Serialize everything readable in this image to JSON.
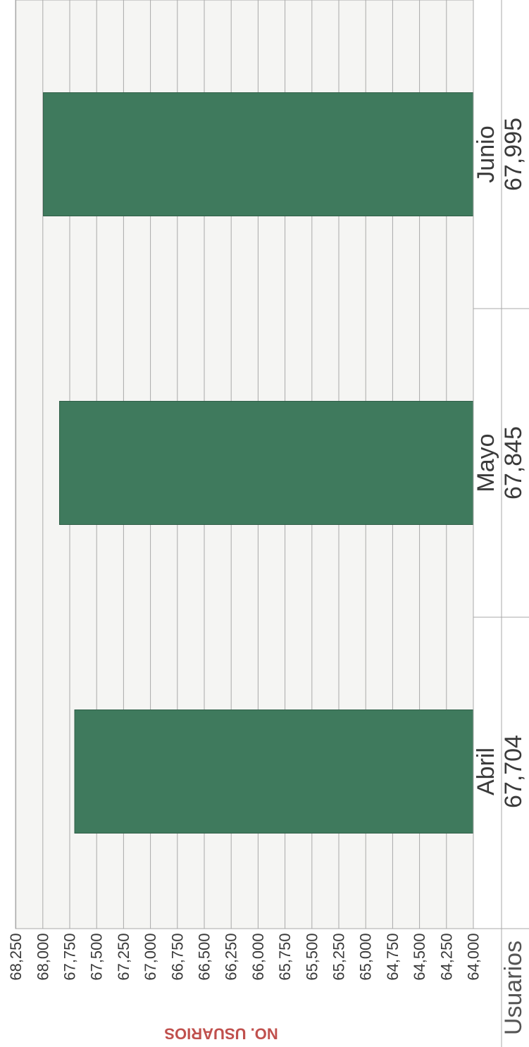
{
  "chart_data": {
    "type": "bar",
    "orientation": "rotated-90-clockwise",
    "categories": [
      "Abril",
      "Mayo",
      "Junio"
    ],
    "series": [
      {
        "name": "Usuarios",
        "values": [
          67704,
          67845,
          67995
        ]
      }
    ],
    "value_labels": [
      "67,704",
      "67,845",
      "67,995"
    ],
    "ylabel": "NO. USUARIOS",
    "ylim": [
      64000,
      68250
    ],
    "yticks": [
      64000,
      64250,
      64500,
      64750,
      65000,
      65250,
      65500,
      65750,
      66000,
      66250,
      66500,
      66750,
      67000,
      67250,
      67500,
      67750,
      68000,
      68250
    ],
    "ytick_labels": [
      "64,000",
      "64,250",
      "64,500",
      "64,750",
      "65,000",
      "65,250",
      "65,500",
      "65,750",
      "66,000",
      "66,250",
      "66,500",
      "66,750",
      "67,000",
      "67,250",
      "67,500",
      "67,750",
      "68,000",
      "68,250"
    ],
    "grid": true,
    "legend": "data-table",
    "colors": {
      "bar": "#3f7a5d",
      "grid": "#a9a9a9",
      "background": "#f5f5f3",
      "axis_title": "#c0504d"
    }
  }
}
